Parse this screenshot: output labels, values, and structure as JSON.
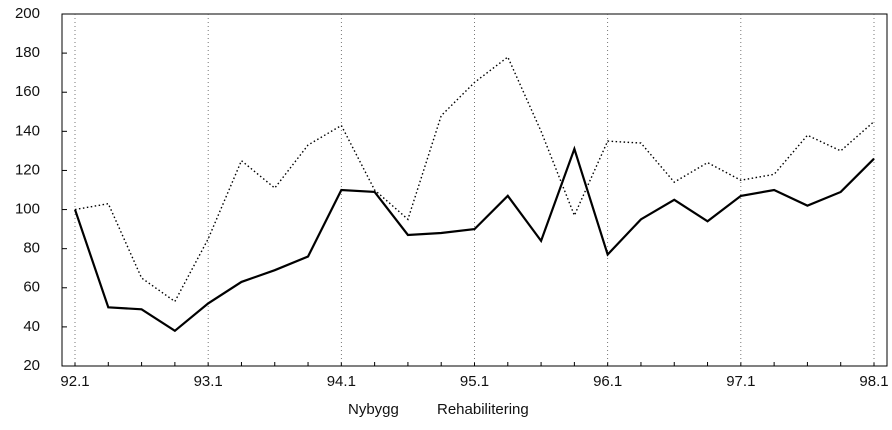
{
  "chart_data": {
    "type": "line",
    "categories": [
      "92.1",
      null,
      null,
      null,
      "93.1",
      null,
      null,
      null,
      "94.1",
      null,
      null,
      null,
      "95.1",
      null,
      null,
      null,
      "96.1",
      null,
      null,
      null,
      "97.1",
      null,
      null,
      null,
      "98.1"
    ],
    "series": [
      {
        "name": "Nybygg",
        "color": "#000000",
        "style": "solid",
        "values": [
          100,
          50,
          49,
          38,
          52,
          63,
          69,
          76,
          110,
          109,
          87,
          88,
          90,
          107,
          84,
          131,
          77,
          95,
          105,
          94,
          107,
          110,
          102,
          109,
          126
        ]
      },
      {
        "name": "Rehabilitering",
        "color": "#000000",
        "style": "dotted",
        "values": [
          100,
          103,
          65,
          53,
          85,
          125,
          111,
          133,
          143,
          110,
          95,
          148,
          165,
          178,
          140,
          97,
          135,
          134,
          114,
          124,
          115,
          118,
          138,
          130,
          145
        ]
      }
    ],
    "ylim": [
      20,
      200
    ],
    "yticks": [
      20,
      40,
      60,
      80,
      100,
      120,
      140,
      160,
      180,
      200
    ],
    "grid": true
  }
}
